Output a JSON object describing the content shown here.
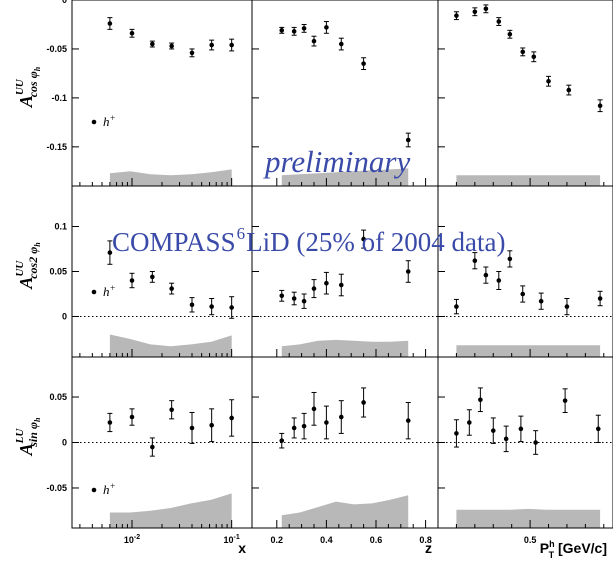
{
  "overlay": {
    "preliminary": "preliminary",
    "experiment": "COMPASS",
    "isotope_mass": "6",
    "target_note": "LiD (25% of 2004 data)"
  },
  "style": {
    "marker_color": "#000000",
    "band_color": "#b8b8b8",
    "overlay_color": "#3a4aa8"
  },
  "chart_data": {
    "type": "scatter",
    "rows": [
      {
        "ylabel_main": "A",
        "ylabel_sup": "UU",
        "ylabel_sub": "cos φ",
        "ylabel_subsub": "h",
        "ylim": [
          -0.19,
          0.0
        ],
        "yticks": [
          {
            "v": 0,
            "t": "0"
          },
          {
            "v": -0.05,
            "t": "-0.05"
          },
          {
            "v": -0.1,
            "t": "-0.1"
          },
          {
            "v": -0.15,
            "t": "-0.15"
          }
        ],
        "legend": "h+"
      },
      {
        "ylabel_main": "A",
        "ylabel_sup": "UU",
        "ylabel_sub": "cos2 φ",
        "ylabel_subsub": "h",
        "ylim": [
          -0.045,
          0.145
        ],
        "yticks": [
          {
            "v": 0.1,
            "t": "0.1"
          },
          {
            "v": 0.05,
            "t": "0.05"
          },
          {
            "v": 0,
            "t": "0"
          }
        ],
        "legend": "h+"
      },
      {
        "ylabel_main": "A",
        "ylabel_sup": "LU",
        "ylabel_sub": "sin φ",
        "ylabel_subsub": "h",
        "ylim": [
          -0.094,
          0.094
        ],
        "yticks": [
          {
            "v": 0.05,
            "t": "0.05"
          },
          {
            "v": 0,
            "t": "0"
          },
          {
            "v": -0.05,
            "t": "-0.05"
          }
        ],
        "legend": "h+"
      }
    ],
    "columns": [
      {
        "xlabel": "x",
        "scale": "log",
        "xlim": [
          0.0025,
          0.16
        ],
        "xticks": [
          {
            "v": 0.01,
            "t": "10",
            "sup": "-2"
          },
          {
            "v": 0.1,
            "t": "10",
            "sup": "-1"
          }
        ],
        "minor_ticks": [
          0.003,
          0.004,
          0.005,
          0.006,
          0.007,
          0.008,
          0.009,
          0.02,
          0.03,
          0.04,
          0.05,
          0.06,
          0.07,
          0.08,
          0.09
        ],
        "x": [
          0.006,
          0.01,
          0.016,
          0.025,
          0.04,
          0.063,
          0.1
        ]
      },
      {
        "xlabel": "z",
        "scale": "linear",
        "xlim": [
          0.1,
          0.85
        ],
        "xticks": [
          {
            "v": 0.2,
            "t": "0.2"
          },
          {
            "v": 0.4,
            "t": "0.4"
          },
          {
            "v": 0.6,
            "t": "0.6"
          },
          {
            "v": 0.8,
            "t": "0.8"
          }
        ],
        "minor_ticks": [
          0.25,
          0.3,
          0.35,
          0.45,
          0.5,
          0.55,
          0.65,
          0.7,
          0.75
        ],
        "x": [
          0.22,
          0.27,
          0.31,
          0.35,
          0.4,
          0.46,
          0.55,
          0.73
        ]
      },
      {
        "xlabel": "P",
        "xlabel_sup": "h",
        "xlabel_sub": "T",
        "xlabel_unit": " [GeV/c]",
        "scale": "linear",
        "xlim": [
          0.0,
          0.95
        ],
        "xticks": [
          {
            "v": 0.5,
            "t": "0.5"
          }
        ],
        "minor_ticks": [
          0.1,
          0.2,
          0.3,
          0.4,
          0.6,
          0.7,
          0.8,
          0.9
        ],
        "x": [
          0.1,
          0.2,
          0.26,
          0.33,
          0.39,
          0.46,
          0.52,
          0.6,
          0.71,
          0.88
        ]
      }
    ],
    "panels": [
      [
        {
          "y": [
            -0.024,
            -0.034,
            -0.045,
            -0.047,
            -0.054,
            -0.046,
            -0.046
          ],
          "err": [
            0.006,
            0.004,
            0.003,
            0.003,
            0.004,
            0.005,
            0.006
          ],
          "band": {
            "x": [
              0.006,
              0.1
            ],
            "top": [
              -0.177,
              -0.175,
              -0.178,
              -0.179,
              -0.178,
              -0.176,
              -0.173
            ]
          }
        },
        {
          "y": [
            -0.031,
            -0.032,
            -0.029,
            -0.042,
            -0.028,
            -0.045,
            -0.065,
            -0.143
          ],
          "err": [
            0.003,
            0.004,
            0.004,
            0.005,
            0.006,
            0.006,
            0.006,
            0.007
          ],
          "band": {
            "x": [
              0.22,
              0.73
            ],
            "top": [
              -0.179,
              -0.178,
              -0.177,
              -0.176,
              -0.175,
              -0.174,
              -0.173,
              -0.172
            ]
          }
        },
        {
          "y": [
            -0.016,
            -0.012,
            -0.009,
            -0.022,
            -0.035,
            -0.053,
            -0.058,
            -0.083,
            -0.092,
            -0.108
          ],
          "err": [
            0.004,
            0.004,
            0.004,
            0.004,
            0.004,
            0.004,
            0.005,
            0.005,
            0.005,
            0.006
          ],
          "band": {
            "x": [
              0.1,
              0.88
            ],
            "top": [
              -0.179,
              -0.179,
              -0.179,
              -0.179,
              -0.179,
              -0.179,
              -0.179,
              -0.179,
              -0.179,
              -0.179
            ]
          }
        }
      ],
      [
        {
          "y": [
            0.071,
            0.04,
            0.044,
            0.031,
            0.013,
            0.011,
            0.01
          ],
          "err": [
            0.013,
            0.008,
            0.006,
            0.006,
            0.008,
            0.009,
            0.012
          ],
          "band": {
            "x": [
              0.006,
              0.1
            ],
            "top": [
              -0.02,
              -0.025,
              -0.031,
              -0.033,
              -0.031,
              -0.028,
              -0.021
            ]
          }
        },
        {
          "y": [
            0.023,
            0.02,
            0.017,
            0.031,
            0.037,
            0.035,
            0.086,
            0.05
          ],
          "err": [
            0.006,
            0.007,
            0.008,
            0.01,
            0.012,
            0.012,
            0.01,
            0.012
          ],
          "band": {
            "x": [
              0.22,
              0.73
            ],
            "top": [
              -0.033,
              -0.031,
              -0.027,
              -0.026,
              -0.027,
              -0.028,
              -0.028,
              -0.027
            ]
          }
        },
        {
          "y": [
            0.011,
            0.062,
            0.046,
            0.04,
            0.064,
            0.025,
            0.017,
            0.011,
            0.02
          ],
          "err": [
            0.008,
            0.009,
            0.009,
            0.01,
            0.009,
            0.009,
            0.009,
            0.009,
            0.008
          ],
          "x": [
            0.1,
            0.2,
            0.26,
            0.33,
            0.39,
            0.46,
            0.56,
            0.7,
            0.88
          ],
          "band": {
            "x": [
              0.1,
              0.88
            ],
            "top": [
              -0.032,
              -0.032,
              -0.032,
              -0.032,
              -0.032,
              -0.032,
              -0.032,
              -0.032,
              -0.032
            ]
          }
        }
      ],
      [
        {
          "y": [
            0.022,
            0.028,
            -0.005,
            0.036,
            0.016,
            0.019,
            0.027
          ],
          "err": [
            0.01,
            0.009,
            0.01,
            0.01,
            0.017,
            0.018,
            0.02
          ],
          "band": {
            "x": [
              0.006,
              0.1
            ],
            "top": [
              -0.077,
              -0.077,
              -0.075,
              -0.072,
              -0.067,
              -0.063,
              -0.056
            ]
          }
        },
        {
          "y": [
            0.002,
            0.016,
            0.018,
            0.037,
            0.022,
            0.028,
            0.044,
            0.024
          ],
          "err": [
            0.008,
            0.011,
            0.014,
            0.018,
            0.018,
            0.018,
            0.016,
            0.02
          ],
          "band": {
            "x": [
              0.22,
              0.73
            ],
            "top": [
              -0.08,
              -0.077,
              -0.071,
              -0.065,
              -0.068,
              -0.067,
              -0.063,
              -0.058
            ]
          }
        },
        {
          "y": [
            0.01,
            0.022,
            0.047,
            0.013,
            0.004,
            0.015,
            0.0,
            0.046,
            0.015
          ],
          "err": [
            0.015,
            0.014,
            0.013,
            0.014,
            0.014,
            0.014,
            0.013,
            0.013,
            0.015
          ],
          "x": [
            0.1,
            0.17,
            0.23,
            0.3,
            0.37,
            0.45,
            0.53,
            0.69,
            0.87
          ],
          "band": {
            "x": [
              0.1,
              0.88
            ],
            "top": [
              -0.074,
              -0.074,
              -0.074,
              -0.074,
              -0.073,
              -0.074,
              -0.074,
              -0.074,
              -0.074
            ]
          }
        }
      ]
    ]
  }
}
